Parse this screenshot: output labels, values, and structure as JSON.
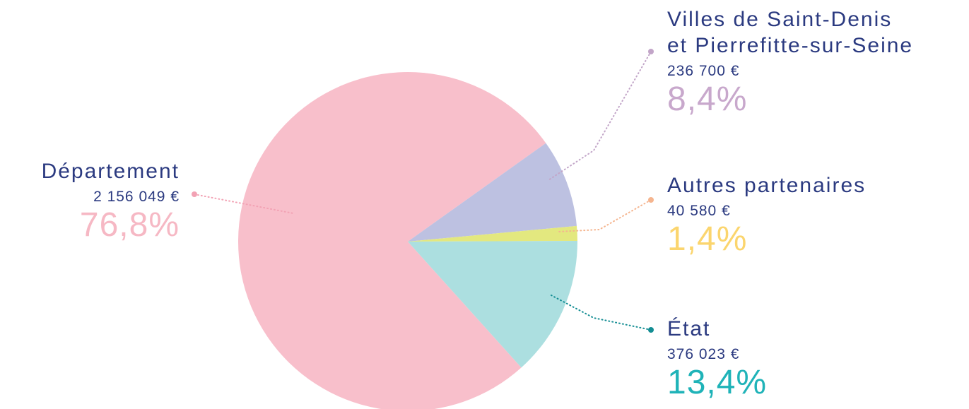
{
  "chart_data": {
    "type": "pie",
    "categories": [
      "Département",
      "Villes de Saint-Denis et Pierrefitte-sur-Seine",
      "Autres partenaires",
      "État"
    ],
    "values": [
      76.8,
      8.4,
      1.4,
      13.4
    ],
    "value_labels": [
      "76,8%",
      "8,4%",
      "1,4%",
      "13,4%"
    ],
    "amounts": [
      "2 156 049 €",
      "236 700 €",
      "40 580 €",
      "376 023 €"
    ],
    "colors": [
      "#f8bfcb",
      "#bdc1e1",
      "#e3e87f",
      "#acdfe0"
    ]
  }
}
